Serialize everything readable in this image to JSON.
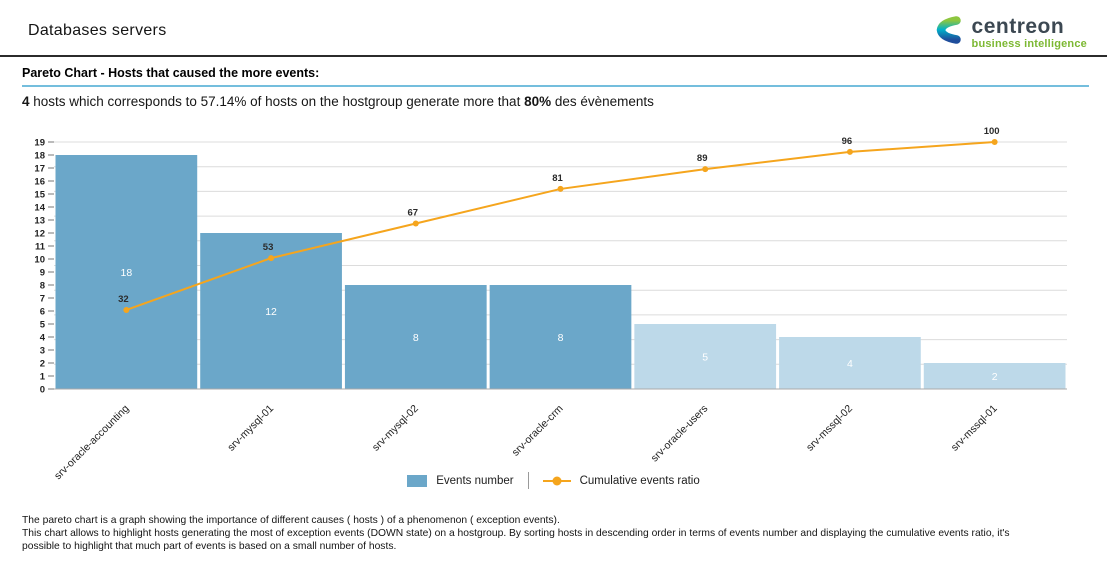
{
  "header": {
    "title": "Databases servers",
    "logo": {
      "name": "centreon",
      "tagline": "business intelligence",
      "name_color": "#3c4852",
      "tagline_color": "#7cb832"
    }
  },
  "section": {
    "heading": "Pareto Chart - Hosts that caused the more events:"
  },
  "summary": {
    "bold_hosts": "4",
    "text_1": " hosts which corresponds to 57.14% of hosts on the hostgroup generate more that ",
    "bold_pct": "80%",
    "text_2": " des évènements"
  },
  "chart_data": {
    "type": "bar",
    "subtype": "pareto (bars + cumulative line)",
    "categories": [
      "srv-oracle-accounting",
      "srv-mysql-01",
      "srv-mysql-02",
      "srv-oracle-crm",
      "srv-oracle-users",
      "srv-mssql-02",
      "srv-mssql-01"
    ],
    "series": [
      {
        "name": "Events number",
        "type": "bar",
        "values": [
          18,
          12,
          8,
          8,
          5,
          4,
          2
        ]
      },
      {
        "name": "Cumulative events ratio",
        "type": "line",
        "values_percent": [
          32,
          53,
          67,
          81,
          89,
          96,
          100
        ]
      }
    ],
    "highlight_count": 4,
    "y_axis": {
      "min": 0,
      "max": 19,
      "tick_step": 1
    },
    "cumulative_axis": {
      "min": 0,
      "max": 100,
      "grid_step_percent": 10
    },
    "grid": "horizontal lines every 10% of cumulative axis",
    "legend_position": "bottom",
    "colors": {
      "bar_highlight": "#6ba7c9",
      "bar_normal": "#bdd9e9",
      "line": "#f5a51d",
      "bar_label": "#ffffff",
      "point_label": "#2b2b2b",
      "grid": "#dcdcdc",
      "axis": "#aaaaaa",
      "tick_text": "#222222"
    }
  },
  "legend": {
    "bar_label": "Events number",
    "line_label": "Cumulative events ratio"
  },
  "footer": {
    "lines": [
      "The pareto chart is a graph showing the importance of different causes ( hosts ) of a phenomenon ( exception events).",
      "This chart allows to highlight hosts generating the most of exception events (DOWN state) on a hostgroup. By sorting hosts in descending order in terms of events number and displaying the cumulative events ratio, it's",
      "possible to highlight that much part of events is based on a small number of hosts."
    ]
  }
}
